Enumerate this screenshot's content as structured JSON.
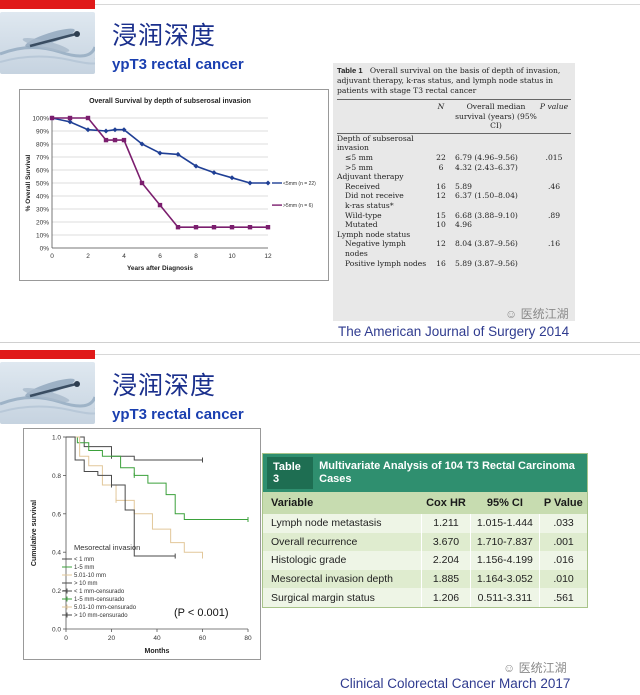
{
  "slide1": {
    "title_cn": "浸润深度",
    "title_en": "ypT3 rectal cancer",
    "journal": "The American Journal of Surgery 2014",
    "watermark": "医统江湖",
    "table": {
      "label": "Table 1",
      "caption": "Overall survival on the basis of depth of invasion, adjuvant therapy, k-ras status, and lymph node status in patients with stage T3 rectal cancer",
      "headers": [
        "",
        "N",
        "Overall median survival (years) (95% CI)",
        "P value"
      ],
      "rows": [
        {
          "label": "Depth of subserosal invasion",
          "n": "",
          "survival": "",
          "p": "",
          "indent": false
        },
        {
          "label": "≤5 mm",
          "n": "22",
          "survival": "6.79 (4.96–9.56)",
          "p": ".015",
          "indent": true
        },
        {
          "label": ">5 mm",
          "n": "6",
          "survival": "4.32 (2.43–6.37)",
          "p": "",
          "indent": true
        },
        {
          "label": "Adjuvant therapy",
          "n": "",
          "survival": "",
          "p": "",
          "indent": false
        },
        {
          "label": "Received",
          "n": "16",
          "survival": "5.89",
          "p": ".46",
          "indent": true
        },
        {
          "label": "Did not receive",
          "n": "12",
          "survival": "6.37 (1.50–8.04)",
          "p": "",
          "indent": true
        },
        {
          "label": "k-ras status*",
          "n": "",
          "survival": "",
          "p": "",
          "indent": true
        },
        {
          "label": "Wild-type",
          "n": "15",
          "survival": "6.68 (3.88–9.10)",
          "p": ".89",
          "indent": true
        },
        {
          "label": "Mutated",
          "n": "10",
          "survival": "4.96",
          "p": "",
          "indent": true
        },
        {
          "label": "Lymph node status",
          "n": "",
          "survival": "",
          "p": "",
          "indent": false
        },
        {
          "label": "Negative lymph nodes",
          "n": "12",
          "survival": "8.04 (3.87–9.56)",
          "p": ".16",
          "indent": true
        },
        {
          "label": "Positive lymph nodes",
          "n": "16",
          "survival": "5.89 (3.87–9.56)",
          "p": "",
          "indent": true
        }
      ]
    }
  },
  "slide2": {
    "title_cn": "浸润深度",
    "title_en": "ypT3 rectal cancer",
    "journal": "Clinical Colorectal Cancer March 2017",
    "watermark": "医统江湖",
    "table": {
      "label": "Table 3",
      "caption": "Multivariate Analysis of 104 T3 Rectal Carcinoma Cases",
      "headers": [
        "Variable",
        "Cox HR",
        "95% CI",
        "P Value"
      ],
      "rows": [
        [
          "Lymph node metastasis",
          "1.211",
          "1.015-1.444",
          ".033"
        ],
        [
          "Overall recurrence",
          "3.670",
          "1.710-7.837",
          ".001"
        ],
        [
          "Histologic grade",
          "2.204",
          "1.156-4.199",
          ".016"
        ],
        [
          "Mesorectal invasion depth",
          "1.885",
          "1.164-3.052",
          ".010"
        ],
        [
          "Surgical margin status",
          "1.206",
          "0.511-3.311",
          ".561"
        ]
      ]
    }
  },
  "chart_data": [
    {
      "type": "line",
      "title": "Overall Survival by depth of subserosal invasion",
      "xlabel": "Years after Diagnosis",
      "ylabel": "% Overall Survival",
      "xlim": [
        0,
        12
      ],
      "ylim": [
        0,
        100
      ],
      "xticks": [
        "0",
        "2",
        "4",
        "6",
        "8",
        "10",
        "12"
      ],
      "yticks": [
        "0%",
        "10%",
        "20%",
        "30%",
        "40%",
        "50%",
        "60%",
        "70%",
        "80%",
        "90%",
        "100%"
      ],
      "grid": true,
      "legend": "right",
      "series": [
        {
          "name": "<5mm (n = 22)",
          "color": "#1f3f95",
          "x": [
            0,
            1,
            2,
            3,
            3.5,
            4,
            5,
            6,
            7,
            8,
            9,
            10,
            11,
            12
          ],
          "y": [
            100,
            97,
            91,
            90,
            91,
            91,
            80,
            73,
            72,
            63,
            58,
            54,
            50,
            50
          ]
        },
        {
          "name": ">5mm (n = 6)",
          "color": "#7b1e6e",
          "x": [
            0,
            1,
            2,
            3,
            3.5,
            4,
            5,
            6,
            7,
            8,
            9,
            10,
            11,
            12
          ],
          "y": [
            100,
            100,
            100,
            83,
            83,
            83,
            50,
            33,
            16,
            16,
            16,
            16,
            16,
            16
          ]
        }
      ]
    },
    {
      "type": "line",
      "title": "",
      "xlabel": "Months",
      "ylabel": "Cumulative survival",
      "xlim": [
        0,
        80
      ],
      "ylim": [
        0,
        1
      ],
      "xticks": [
        "0",
        "20",
        "40",
        "60",
        "80"
      ],
      "yticks": [
        "0.0",
        "0.2",
        "0.4",
        "0.6",
        "0.8",
        "1.0"
      ],
      "legend_title": "Mesorectal invasion",
      "annotation": "(P < 0.001)",
      "legend": "bottom-left",
      "series": [
        {
          "name": "< 1 mm",
          "color": "#4a4a4a",
          "x": [
            0,
            6,
            8,
            20,
            30,
            40,
            60
          ],
          "y": [
            1.0,
            1.0,
            0.95,
            0.9,
            0.88,
            0.88,
            0.88
          ]
        },
        {
          "name": "1-5 mm",
          "color": "#3ba13b",
          "x": [
            0,
            5,
            10,
            16,
            24,
            30,
            36,
            44,
            48,
            52,
            60,
            80
          ],
          "y": [
            1.0,
            0.97,
            0.93,
            0.9,
            0.84,
            0.8,
            0.76,
            0.7,
            0.6,
            0.57,
            0.57,
            0.57
          ]
        },
        {
          "name": "5.01-10 mm",
          "color": "#e2c79a",
          "x": [
            0,
            6,
            10,
            16,
            22,
            30,
            38,
            46,
            52,
            60
          ],
          "y": [
            1.0,
            0.9,
            0.85,
            0.75,
            0.67,
            0.6,
            0.52,
            0.45,
            0.4,
            0.38
          ]
        },
        {
          "name": "> 10 mm",
          "color": "#4a4a4a",
          "x": [
            0,
            4,
            8,
            14,
            20,
            26,
            30,
            40,
            48
          ],
          "y": [
            1.0,
            0.88,
            0.82,
            0.8,
            0.75,
            0.62,
            0.38,
            0.38,
            0.38
          ]
        }
      ],
      "censored_legend": [
        "< 1 mm-censurado",
        "1-5 mm-censurado",
        "5.01-10 mm-censurado",
        "> 10 mm-censurado"
      ]
    }
  ]
}
